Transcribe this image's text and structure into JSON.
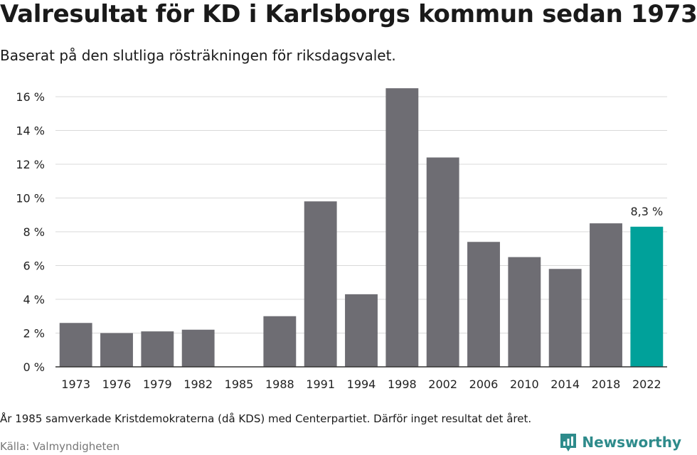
{
  "header": {
    "title": "Valresultat för KD i Karlsborgs kommun sedan 1973",
    "subtitle": "Baserat på den slutliga rösträkningen för riksdagsvalet."
  },
  "footer": {
    "note": "År 1985 samverkade Kristdemokraterna (då KDS) med Centerpartiet. Därför inget resultat det året.",
    "source": "Källa: Valmyndigheten",
    "brand": "Newsworthy"
  },
  "colors": {
    "bar": "#6e6d73",
    "highlight": "#00a19a",
    "grid": "#d9d9d9",
    "axis": "#333333",
    "brand": "#2e8b8b"
  },
  "chart_data": {
    "type": "bar",
    "categories": [
      "1973",
      "1976",
      "1979",
      "1982",
      "1985",
      "1988",
      "1991",
      "1994",
      "1998",
      "2002",
      "2006",
      "2010",
      "2014",
      "2018",
      "2022"
    ],
    "values": [
      2.6,
      2.0,
      2.1,
      2.2,
      null,
      3.0,
      9.8,
      4.3,
      16.5,
      12.4,
      7.4,
      6.5,
      5.8,
      8.5,
      8.3
    ],
    "ylim": [
      0,
      16
    ],
    "yticks": [
      0,
      2,
      4,
      6,
      8,
      10,
      12,
      14,
      16
    ],
    "ytick_labels": [
      "0 %",
      "2 %",
      "4 %",
      "6 %",
      "8 %",
      "10 %",
      "12 %",
      "14 %",
      "16 %"
    ],
    "highlight_index": 14,
    "highlight_label": "8,3 %",
    "grid": true
  }
}
